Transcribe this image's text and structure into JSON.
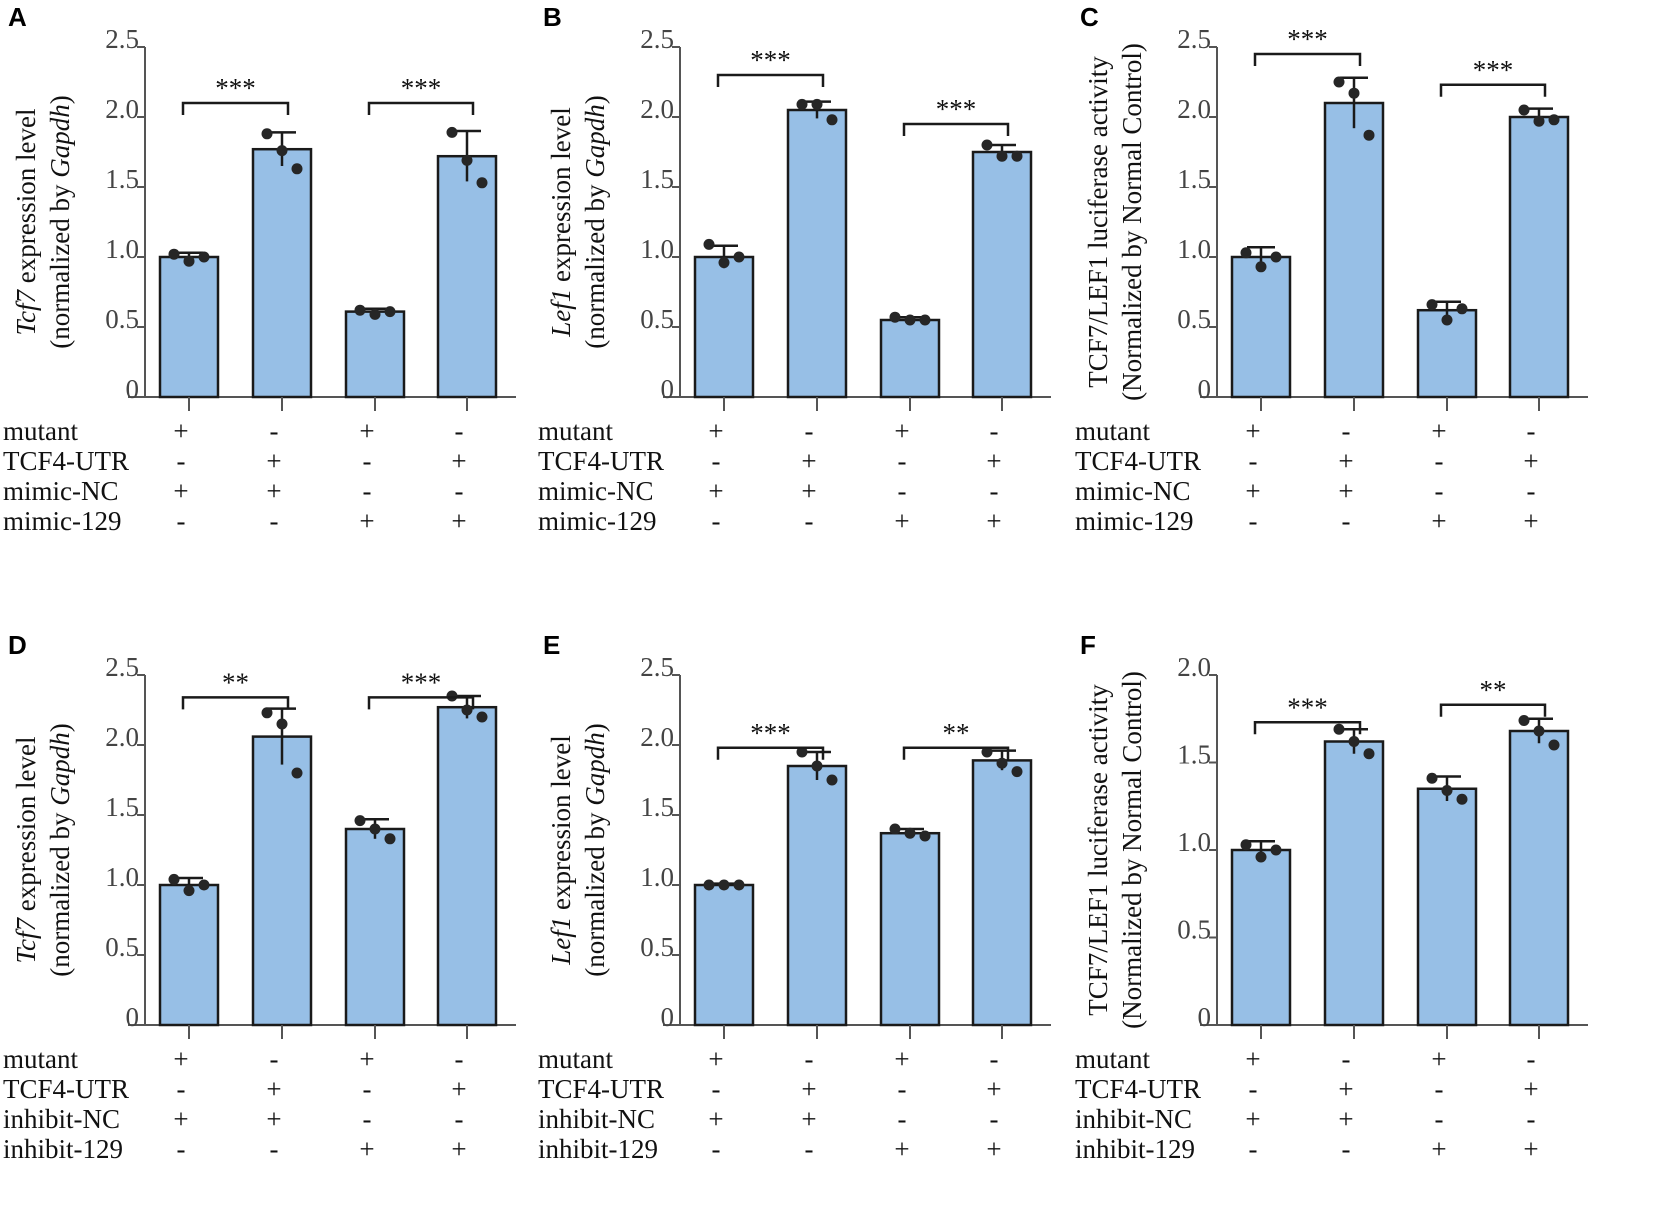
{
  "chart_data": [
    {
      "panel": "A",
      "type": "bar",
      "ylabel_main_italic": "Tcf7",
      "ylabel_main_rest": " expression level",
      "ylabel_sub_pre": "(normalized by ",
      "ylabel_sub_italic": "Gapdh",
      "ylabel_sub_post": ")",
      "ylim": [
        0,
        2.5
      ],
      "ticks": [
        "0",
        "0.5",
        "1.0",
        "1.5",
        "2.0",
        "2.5"
      ],
      "tick_values": [
        0,
        0.5,
        1,
        1.5,
        2,
        2.5
      ],
      "values": [
        1.0,
        1.77,
        0.61,
        1.72
      ],
      "errors": [
        0.03,
        0.12,
        0.02,
        0.18
      ],
      "points": [
        [
          1.02,
          0.97,
          1.0
        ],
        [
          1.88,
          1.76,
          1.63
        ],
        [
          0.62,
          0.59,
          0.61
        ],
        [
          1.89,
          1.69,
          1.53
        ]
      ],
      "rows": [
        {
          "label": "mutant",
          "signs": [
            "+",
            "-",
            "+",
            "-"
          ]
        },
        {
          "label": "TCF4-UTR",
          "signs": [
            "-",
            "+",
            "-",
            "+"
          ]
        },
        {
          "label": "mimic-NC",
          "signs": [
            "+",
            "+",
            "-",
            "-"
          ]
        },
        {
          "label": "mimic-129",
          "signs": [
            "-",
            "-",
            "+",
            "+"
          ]
        }
      ],
      "significance": [
        {
          "from": 0,
          "to": 1,
          "level": 2.1,
          "label": "***"
        },
        {
          "from": 2,
          "to": 3,
          "level": 2.1,
          "label": "***"
        }
      ]
    },
    {
      "panel": "B",
      "type": "bar",
      "ylabel_main_italic": "Lef1",
      "ylabel_main_rest": " expression level",
      "ylabel_sub_pre": "(normalized by ",
      "ylabel_sub_italic": "Gapdh",
      "ylabel_sub_post": ")",
      "ylim": [
        0,
        2.5
      ],
      "ticks": [
        "0",
        "0.5",
        "1.0",
        "1.5",
        "2.0",
        "2.5"
      ],
      "tick_values": [
        0,
        0.5,
        1,
        1.5,
        2,
        2.5
      ],
      "values": [
        1.0,
        2.05,
        0.55,
        1.75
      ],
      "errors": [
        0.08,
        0.06,
        0.02,
        0.05
      ],
      "points": [
        [
          1.09,
          0.96,
          1.0
        ],
        [
          2.09,
          2.09,
          1.98
        ],
        [
          0.57,
          0.55,
          0.55
        ],
        [
          1.8,
          1.72,
          1.72
        ]
      ],
      "rows": [
        {
          "label": "mutant",
          "signs": [
            "+",
            "-",
            "+",
            "-"
          ]
        },
        {
          "label": "TCF4-UTR",
          "signs": [
            "-",
            "+",
            "-",
            "+"
          ]
        },
        {
          "label": "mimic-NC",
          "signs": [
            "+",
            "+",
            "-",
            "-"
          ]
        },
        {
          "label": "mimic-129",
          "signs": [
            "-",
            "-",
            "+",
            "+"
          ]
        }
      ],
      "significance": [
        {
          "from": 0,
          "to": 1,
          "level": 2.3,
          "label": "***"
        },
        {
          "from": 2,
          "to": 3,
          "level": 1.95,
          "label": "***"
        }
      ]
    },
    {
      "panel": "C",
      "type": "bar",
      "ylabel_main_italic": "",
      "ylabel_main_rest": "TCF7/LEF1 luciferase activity",
      "ylabel_sub_pre": "(Normalized by Normal Control)",
      "ylabel_sub_italic": "",
      "ylabel_sub_post": "",
      "ylim": [
        0,
        2.5
      ],
      "ticks": [
        "0",
        "0.5",
        "1.0",
        "1.5",
        "2.0",
        "2.5"
      ],
      "tick_values": [
        0,
        0.5,
        1,
        1.5,
        2,
        2.5
      ],
      "values": [
        1.0,
        2.1,
        0.62,
        2.0
      ],
      "errors": [
        0.07,
        0.18,
        0.06,
        0.06
      ],
      "points": [
        [
          1.03,
          0.93,
          1.0
        ],
        [
          2.25,
          2.17,
          1.87
        ],
        [
          0.66,
          0.55,
          0.63
        ],
        [
          2.05,
          1.97,
          1.98
        ]
      ],
      "rows": [
        {
          "label": "mutant",
          "signs": [
            "+",
            "-",
            "+",
            "-"
          ]
        },
        {
          "label": "TCF4-UTR",
          "signs": [
            "-",
            "+",
            "-",
            "+"
          ]
        },
        {
          "label": "mimic-NC",
          "signs": [
            "+",
            "+",
            "-",
            "-"
          ]
        },
        {
          "label": "mimic-129",
          "signs": [
            "-",
            "-",
            "+",
            "+"
          ]
        }
      ],
      "significance": [
        {
          "from": 0,
          "to": 1,
          "level": 2.45,
          "label": "***"
        },
        {
          "from": 2,
          "to": 3,
          "level": 2.23,
          "label": "***"
        }
      ]
    },
    {
      "panel": "D",
      "type": "bar",
      "ylabel_main_italic": "Tcf7",
      "ylabel_main_rest": " expression level",
      "ylabel_sub_pre": "(normalized by ",
      "ylabel_sub_italic": "Gapdh",
      "ylabel_sub_post": ")",
      "ylim": [
        0,
        2.5
      ],
      "ticks": [
        "0",
        "0.5",
        "1.0",
        "1.5",
        "2.0",
        "2.5"
      ],
      "tick_values": [
        0,
        0.5,
        1,
        1.5,
        2,
        2.5
      ],
      "values": [
        1.0,
        2.06,
        1.4,
        2.27
      ],
      "errors": [
        0.05,
        0.2,
        0.07,
        0.08
      ],
      "points": [
        [
          1.04,
          0.96,
          1.0
        ],
        [
          2.23,
          2.15,
          1.8
        ],
        [
          1.46,
          1.4,
          1.33
        ],
        [
          2.35,
          2.25,
          2.2
        ]
      ],
      "rows": [
        {
          "label": "mutant",
          "signs": [
            "+",
            "-",
            "+",
            "-"
          ]
        },
        {
          "label": "TCF4-UTR",
          "signs": [
            "-",
            "+",
            "-",
            "+"
          ]
        },
        {
          "label": "inhibit-NC",
          "signs": [
            "+",
            "+",
            "-",
            "-"
          ]
        },
        {
          "label": "inhibit-129",
          "signs": [
            "-",
            "-",
            "+",
            "+"
          ]
        }
      ],
      "significance": [
        {
          "from": 0,
          "to": 1,
          "level": 2.34,
          "label": "**"
        },
        {
          "from": 2,
          "to": 3,
          "level": 2.34,
          "label": "***"
        }
      ]
    },
    {
      "panel": "E",
      "type": "bar",
      "ylabel_main_italic": "Lef1",
      "ylabel_main_rest": " expression level",
      "ylabel_sub_pre": "(normalized by ",
      "ylabel_sub_italic": "Gapdh",
      "ylabel_sub_post": ")",
      "ylim": [
        0,
        2.5
      ],
      "ticks": [
        "0",
        "0.5",
        "1.0",
        "1.5",
        "2.0",
        "2.5"
      ],
      "tick_values": [
        0,
        0.5,
        1,
        1.5,
        2,
        2.5
      ],
      "values": [
        1.0,
        1.85,
        1.37,
        1.89
      ],
      "errors": [
        0.01,
        0.1,
        0.03,
        0.07
      ],
      "points": [
        [
          1.0,
          1.0,
          1.0
        ],
        [
          1.95,
          1.85,
          1.75
        ],
        [
          1.4,
          1.37,
          1.35
        ],
        [
          1.95,
          1.87,
          1.81
        ]
      ],
      "rows": [
        {
          "label": "mutant",
          "signs": [
            "+",
            "-",
            "+",
            "-"
          ]
        },
        {
          "label": "TCF4-UTR",
          "signs": [
            "-",
            "+",
            "-",
            "+"
          ]
        },
        {
          "label": "inhibit-NC",
          "signs": [
            "+",
            "+",
            "-",
            "-"
          ]
        },
        {
          "label": "inhibit-129",
          "signs": [
            "-",
            "-",
            "+",
            "+"
          ]
        }
      ],
      "significance": [
        {
          "from": 0,
          "to": 1,
          "level": 1.98,
          "label": "***"
        },
        {
          "from": 2,
          "to": 3,
          "level": 1.98,
          "label": "**"
        }
      ]
    },
    {
      "panel": "F",
      "type": "bar",
      "ylabel_main_italic": "",
      "ylabel_main_rest": "TCF7/LEF1 luciferase activity",
      "ylabel_sub_pre": "(Normalized by Normal Control)",
      "ylabel_sub_italic": "",
      "ylabel_sub_post": "",
      "ylim": [
        0,
        2.0
      ],
      "ticks": [
        "0",
        "0.5",
        "1.0",
        "1.5",
        "2.0"
      ],
      "tick_values": [
        0,
        0.5,
        1,
        1.5,
        2
      ],
      "values": [
        1.0,
        1.62,
        1.35,
        1.68
      ],
      "errors": [
        0.05,
        0.07,
        0.07,
        0.07
      ],
      "points": [
        [
          1.03,
          0.96,
          1.0
        ],
        [
          1.69,
          1.62,
          1.55
        ],
        [
          1.41,
          1.34,
          1.29
        ],
        [
          1.74,
          1.68,
          1.6
        ]
      ],
      "rows": [
        {
          "label": "mutant",
          "signs": [
            "+",
            "-",
            "+",
            "-"
          ]
        },
        {
          "label": "TCF4-UTR",
          "signs": [
            "-",
            "+",
            "-",
            "+"
          ]
        },
        {
          "label": "inhibit-NC",
          "signs": [
            "+",
            "+",
            "-",
            "-"
          ]
        },
        {
          "label": "inhibit-129",
          "signs": [
            "-",
            "-",
            "+",
            "+"
          ]
        }
      ],
      "significance": [
        {
          "from": 0,
          "to": 1,
          "level": 1.73,
          "label": "***"
        },
        {
          "from": 2,
          "to": 3,
          "level": 1.83,
          "label": "**"
        }
      ]
    }
  ],
  "colors": {
    "bar": "#97bfe6",
    "outline": "#1a1a1a",
    "dot": "#262626",
    "axis": "#555555"
  }
}
